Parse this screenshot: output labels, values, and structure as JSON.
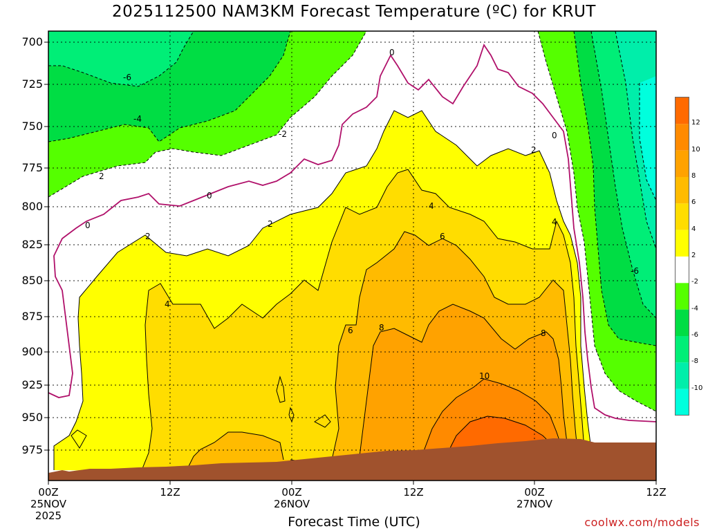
{
  "title": "2025112500 NAM3KM Forecast Temperature (ºC) for KRUT",
  "xlabel": "Forecast Time (UTC)",
  "credit": "coolwx.com/models",
  "chart_data": {
    "type": "contour",
    "title": "2025112500 NAM3KM Forecast Temperature (ºC) for KRUT",
    "xlabel": "Forecast Time (UTC)",
    "ylabel": "",
    "y_ticks": [
      700,
      725,
      750,
      775,
      800,
      825,
      850,
      875,
      900,
      925,
      950,
      975
    ],
    "ylim": [
      1000,
      700
    ],
    "x_ticks": [
      {
        "line1": "00Z",
        "line2": "25NOV",
        "line3": "2025"
      },
      {
        "line1": "12Z",
        "line2": "",
        "line3": ""
      },
      {
        "line1": "00Z",
        "line2": "26NOV",
        "line3": ""
      },
      {
        "line1": "12Z",
        "line2": "",
        "line3": ""
      },
      {
        "line1": "00Z",
        "line2": "27NOV",
        "line3": ""
      },
      {
        "line1": "12Z",
        "line2": "",
        "line3": ""
      }
    ],
    "contour_labels": [
      "-6",
      "-4",
      "-2",
      "0",
      "2",
      "4",
      "6",
      "8",
      "10",
      "0",
      "2",
      "4",
      "8",
      "-6",
      "6",
      "-2",
      "0",
      "2",
      "4"
    ],
    "colorbar": {
      "ticks": [
        "12",
        "10",
        "8",
        "6",
        "4",
        "2",
        "-2",
        "-4",
        "-6",
        "-8",
        "-10"
      ],
      "colors": [
        "#ff6a00",
        "#ff8a00",
        "#ffa200",
        "#ffbb00",
        "#ffdd00",
        "#ffff00",
        "#ffffff",
        "#55ff00",
        "#00dd44",
        "#00ee77",
        "#00eeaa",
        "#00ffdd"
      ]
    },
    "terrain_color": "#a0522d",
    "grid": true
  }
}
